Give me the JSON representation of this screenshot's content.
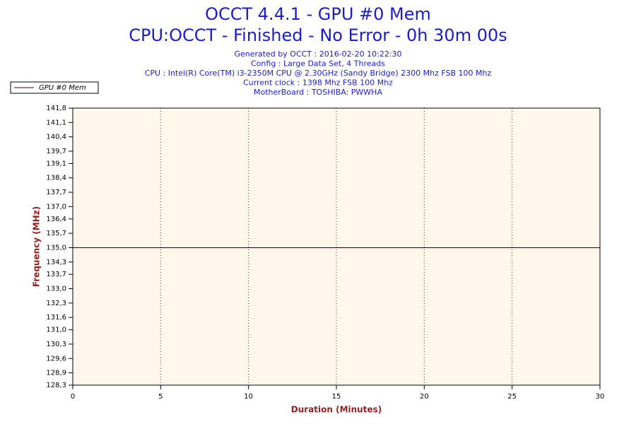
{
  "chart_data": {
    "type": "line",
    "title": "OCCT 4.4.1 - GPU #0 Mem",
    "subtitle": "CPU:OCCT - Finished - No Error - 0h 30m 00s",
    "info": [
      "Generated by OCCT : 2016-02-20 10:22:30",
      "Config : Large Data Set, 4 Threads",
      "CPU : Intel(R) Core(TM) i3-2350M CPU @ 2.30GHz (Sandy Bridge) 2300 Mhz FSB 100 Mhz",
      "Current clock : 1398 Mhz FSB 100 Mhz",
      "MotherBoard : TOSHIBA: PWWHA"
    ],
    "x_label": "Duration (Minutes)",
    "y_label": "Frequency (MHz)",
    "x": [
      0,
      30
    ],
    "series": [
      {
        "name": "GPU #0 Mem",
        "color": "#400000",
        "values": [
          135,
          135
        ]
      }
    ],
    "xlim": [
      0,
      30
    ],
    "xticks": [
      0,
      5,
      10,
      15,
      20,
      25,
      30
    ],
    "ylim": [
      128.3,
      141.8
    ],
    "yticks": [
      {
        "value": 128.3,
        "label": "128,3"
      },
      {
        "value": 128.9,
        "label": "128,9"
      },
      {
        "value": 129.6,
        "label": "129,6"
      },
      {
        "value": 130.3,
        "label": "130,3"
      },
      {
        "value": 131.0,
        "label": "131,0"
      },
      {
        "value": 131.6,
        "label": "131,6"
      },
      {
        "value": 132.3,
        "label": "132,3"
      },
      {
        "value": 133.0,
        "label": "133,0"
      },
      {
        "value": 133.7,
        "label": "133,7"
      },
      {
        "value": 134.3,
        "label": "134,3"
      },
      {
        "value": 135.0,
        "label": "135,0"
      },
      {
        "value": 135.7,
        "label": "135,7"
      },
      {
        "value": 136.4,
        "label": "136,4"
      },
      {
        "value": 137.0,
        "label": "137,0"
      },
      {
        "value": 137.7,
        "label": "137,7"
      },
      {
        "value": 138.4,
        "label": "138,4"
      },
      {
        "value": 139.1,
        "label": "139,1"
      },
      {
        "value": 139.7,
        "label": "139,7"
      },
      {
        "value": 140.4,
        "label": "140,4"
      },
      {
        "value": 141.1,
        "label": "141,1"
      },
      {
        "value": 141.8,
        "label": "141,8"
      }
    ],
    "grid": "x",
    "legend": "top-left"
  }
}
